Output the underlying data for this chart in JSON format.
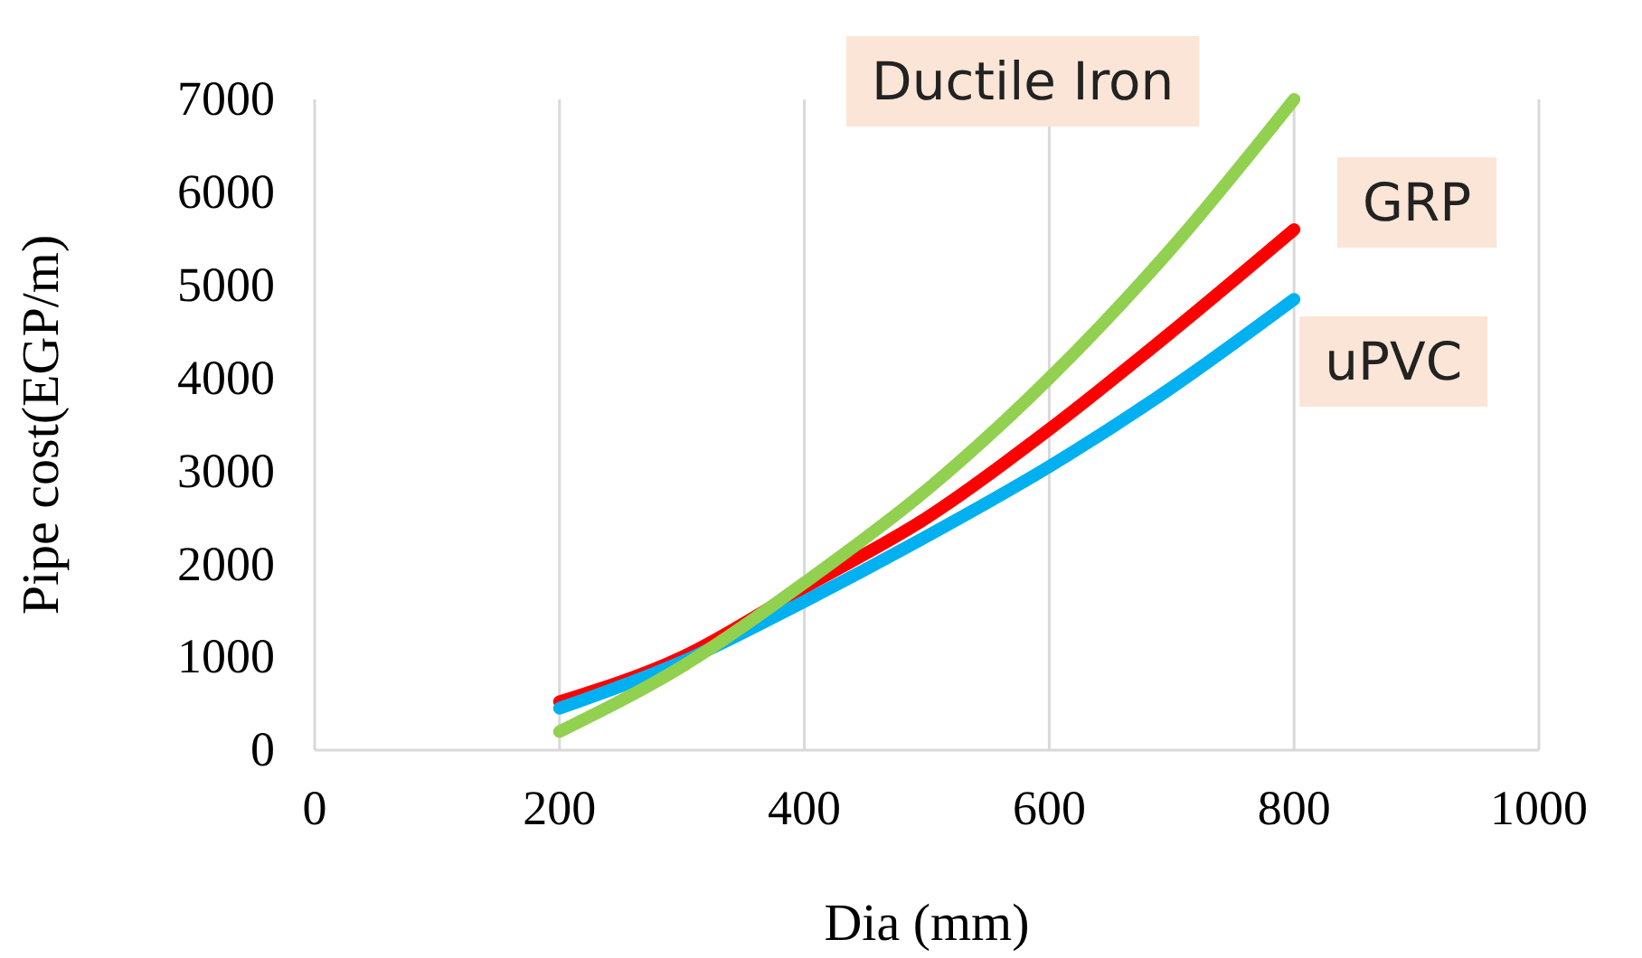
{
  "chart_data": {
    "type": "line",
    "xlabel": "Dia (mm)",
    "ylabel": "Pipe cost(EGP/m)",
    "x": [
      200,
      300,
      400,
      500,
      600,
      700,
      800
    ],
    "series": [
      {
        "name": "GRP",
        "color": "#ff0000",
        "values": [
          520,
          1000,
          1750,
          2500,
          3450,
          4500,
          5600
        ]
      },
      {
        "name": "uPVC",
        "color": "#00b0f0",
        "values": [
          450,
          950,
          1600,
          2300,
          3050,
          3900,
          4850
        ]
      },
      {
        "name": "Ductile Iron",
        "color": "#92d050",
        "values": [
          200,
          900,
          1800,
          2800,
          4000,
          5400,
          7000
        ]
      }
    ],
    "xlim": [
      0,
      1000
    ],
    "xticks": [
      0,
      200,
      400,
      600,
      800,
      1000
    ],
    "ylim": [
      0,
      7000
    ],
    "yticks": [
      0,
      1000,
      2000,
      3000,
      4000,
      5000,
      6000,
      7000
    ],
    "grid": "x",
    "legend": false,
    "marker": "none",
    "line_style": "solid"
  }
}
